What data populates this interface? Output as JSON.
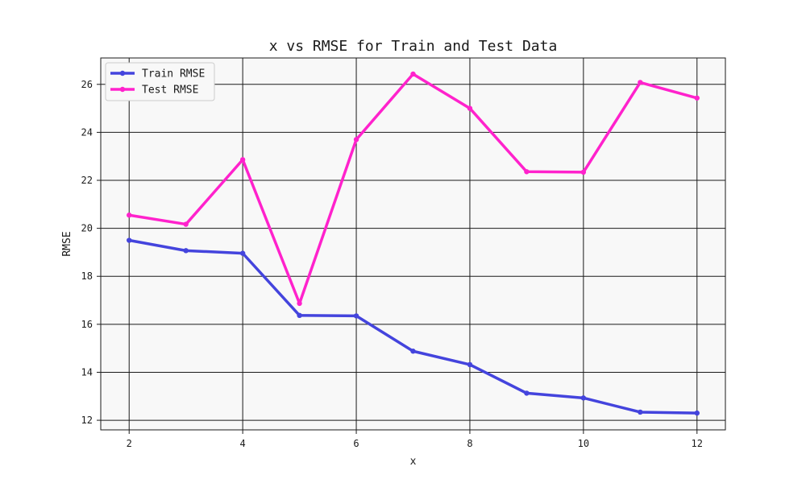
{
  "chart_data": {
    "type": "line",
    "title": "x vs RMSE for Train and Test Data",
    "xlabel": "x",
    "ylabel": "RMSE",
    "x": [
      2,
      3,
      4,
      5,
      6,
      7,
      8,
      9,
      10,
      11,
      12
    ],
    "xlim": [
      1.5,
      12.5
    ],
    "ylim": [
      11.6,
      27.1
    ],
    "x_ticks": [
      2,
      4,
      6,
      8,
      10,
      12
    ],
    "y_ticks": [
      12,
      14,
      16,
      18,
      20,
      22,
      24,
      26
    ],
    "grid": true,
    "legend_position": "upper-left",
    "series": [
      {
        "name": "Train RMSE",
        "color": "#4444dd",
        "values": [
          19.5,
          19.07,
          18.96,
          16.37,
          16.35,
          14.88,
          14.32,
          13.13,
          12.93,
          12.34,
          12.3
        ]
      },
      {
        "name": "Test RMSE",
        "color": "#ff22cc",
        "values": [
          20.55,
          20.17,
          22.86,
          16.87,
          23.7,
          26.43,
          25.0,
          22.36,
          22.34,
          26.08,
          25.43
        ]
      }
    ],
    "plot_background": "#f8f8f8",
    "grid_color": "#1a1a1a"
  }
}
